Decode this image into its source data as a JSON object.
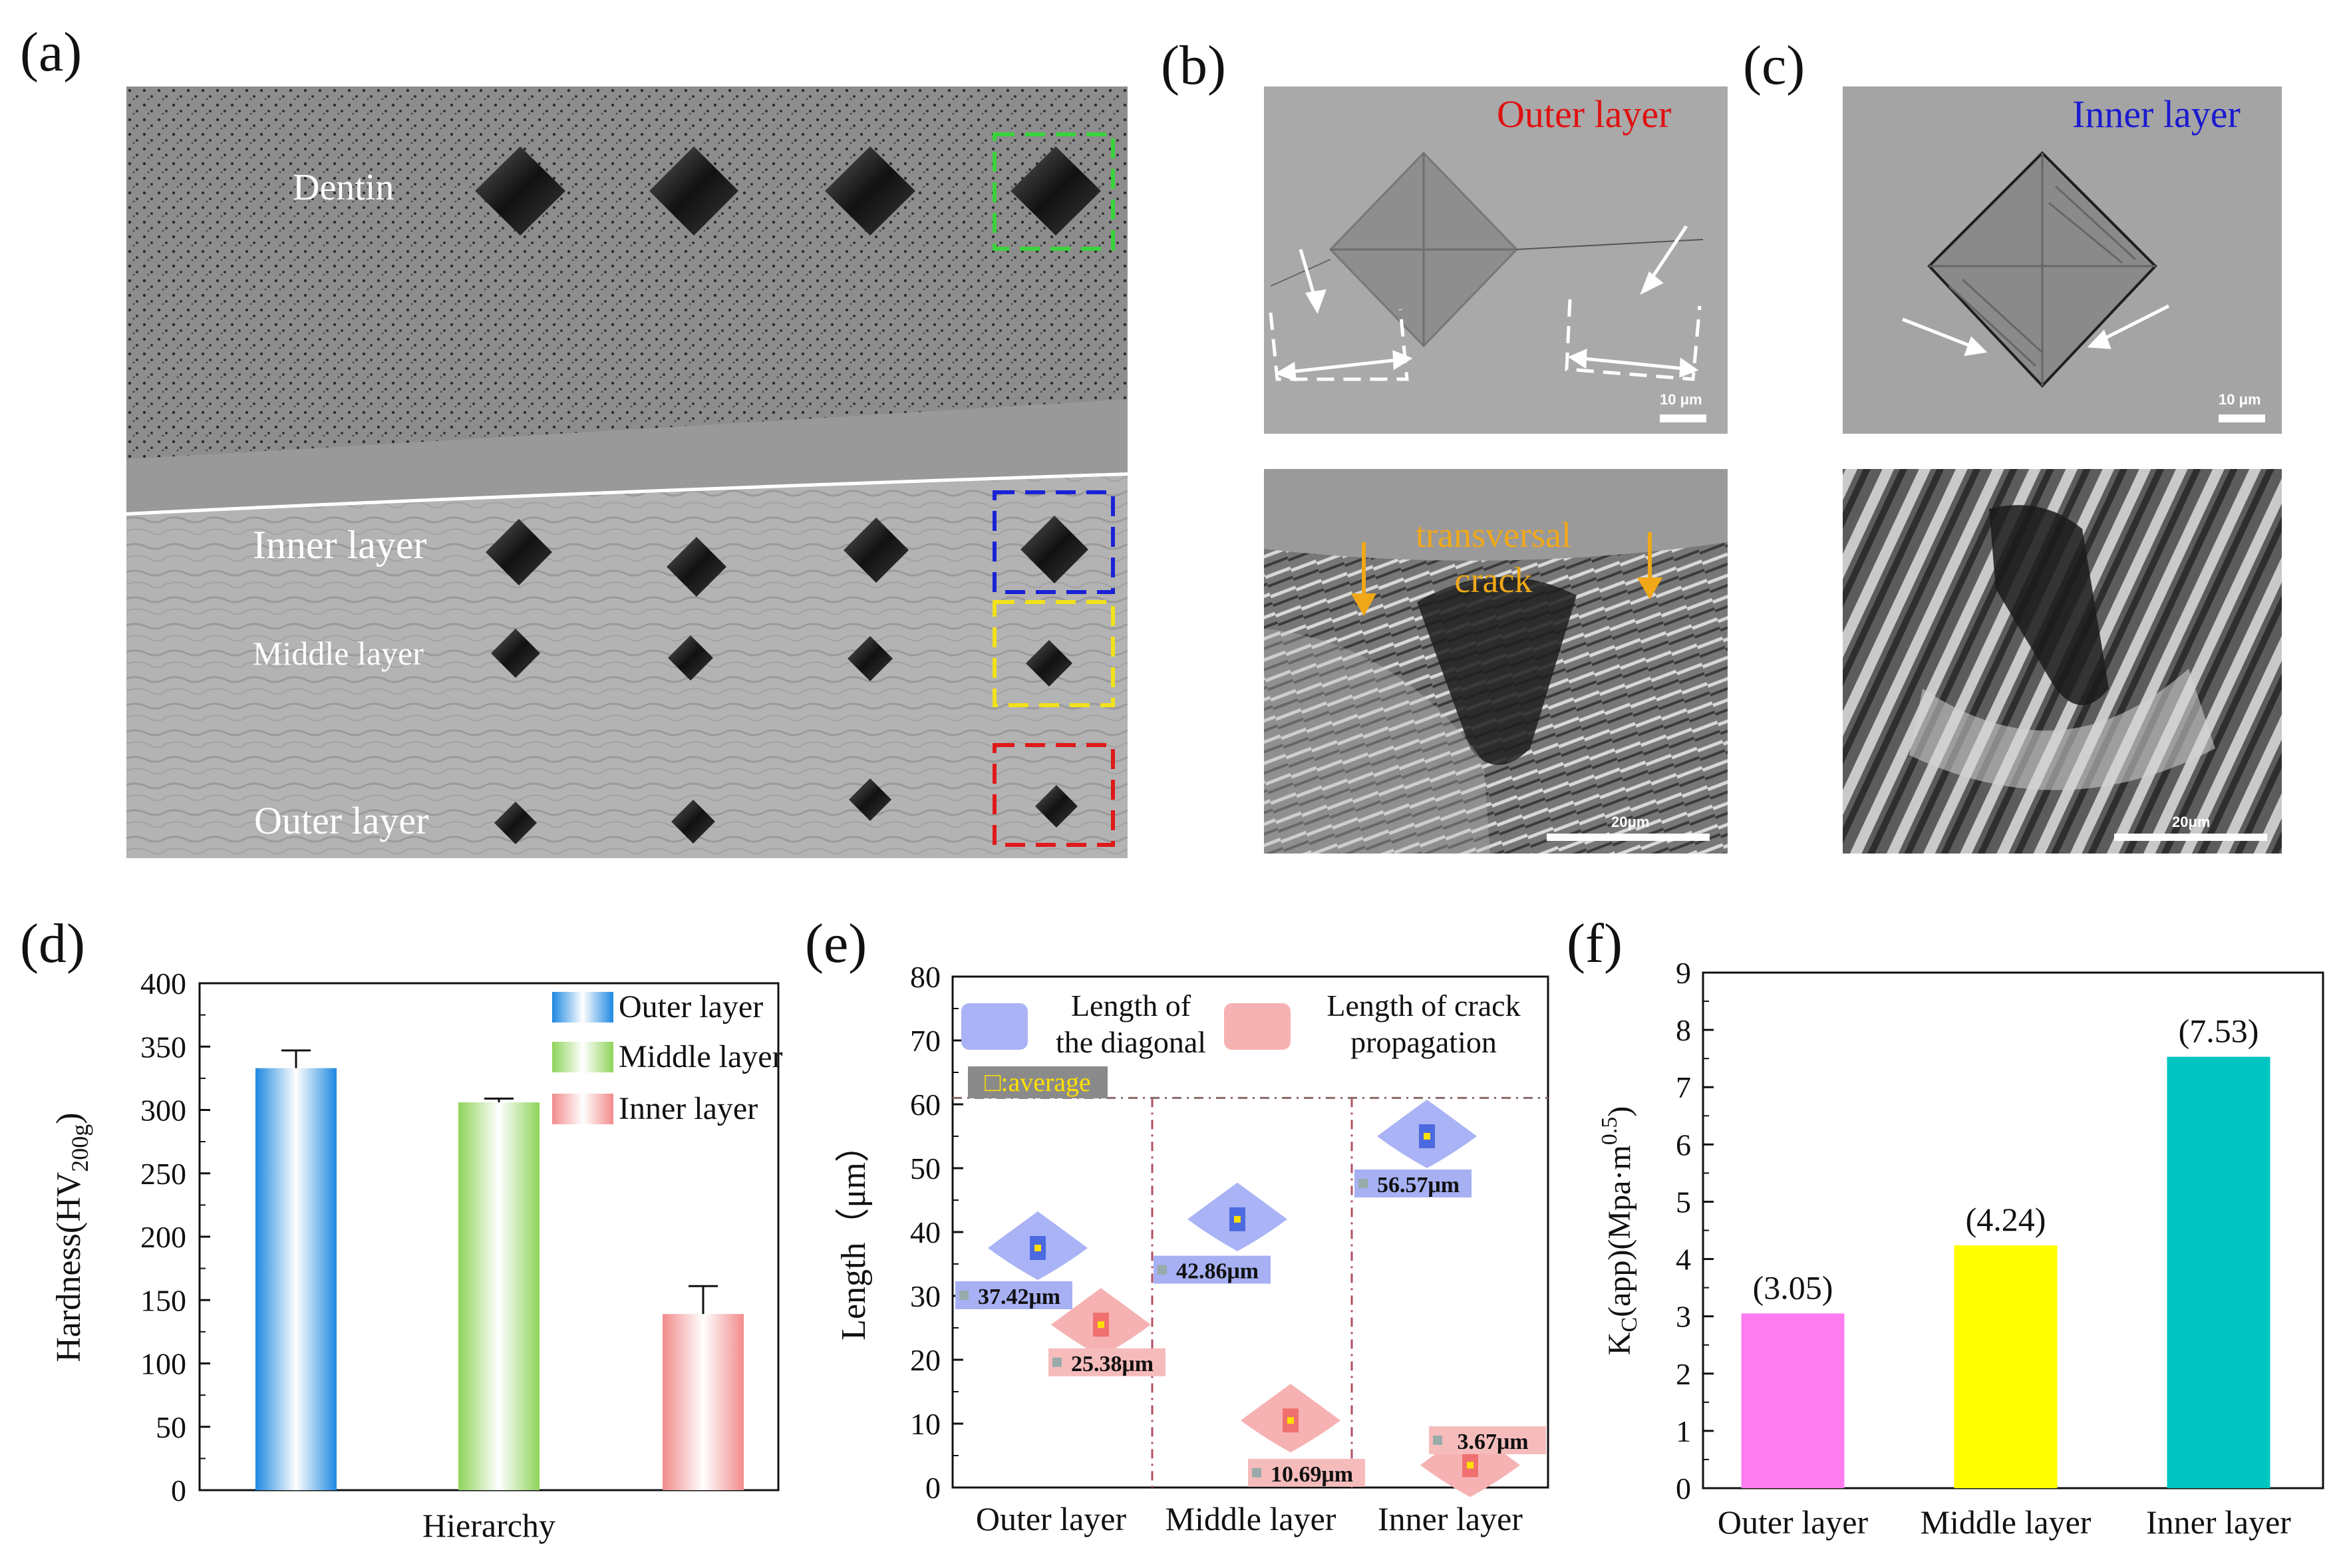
{
  "figure": {
    "panel_labels": [
      "(a)",
      "(b)",
      "(c)",
      "(d)",
      "(e)",
      "(f)"
    ]
  },
  "panel_a": {
    "labels": [
      "Dentin",
      "Inner layer",
      "Middle layer",
      "Outer layer"
    ],
    "box_colors": [
      "#39d33b",
      "#1a22d6",
      "#f2e21b",
      "#e01919"
    ]
  },
  "panel_b": {
    "title": "Outer layer",
    "title_color": "#e01010",
    "scale_top": "10 μm",
    "annotation_line1": "transversal",
    "annotation_line2": "crack",
    "annotation_color": "#f0a818",
    "scale_bottom": "20μm"
  },
  "panel_c": {
    "title": "Inner layer",
    "title_color": "#1a1ad0",
    "scale_top": "10 μm",
    "scale_bottom": "20μm"
  },
  "chart_data": [
    {
      "type": "bar",
      "panel": "d",
      "title": "",
      "xlabel": "Hierarchy",
      "ylabel_main": "Hardness(HV",
      "ylabel_sub": "200g",
      "ylabel_close": ")",
      "ylim": [
        0,
        400
      ],
      "yticks": [
        "0",
        "50",
        "100",
        "150",
        "200",
        "250",
        "300",
        "350",
        "400"
      ],
      "legend": [
        "Outer layer",
        "Middle layer",
        "Inner layer"
      ],
      "series": [
        {
          "name": "Outer layer",
          "value": 333,
          "error": 14,
          "color": "#3a9ae8"
        },
        {
          "name": "Middle layer",
          "value": 306,
          "error": 3,
          "color": "#9ad86a"
        },
        {
          "name": "Inner layer",
          "value": 139,
          "error": 22,
          "color": "#f49a9a"
        }
      ]
    },
    {
      "type": "violin",
      "panel": "e",
      "ylabel": "Length（μm）",
      "ylim": [
        0,
        80
      ],
      "yticks": [
        "0",
        "10",
        "20",
        "30",
        "40",
        "50",
        "60",
        "70",
        "80"
      ],
      "categories": [
        "Outer layer",
        "Middle layer",
        "Inner layer"
      ],
      "legend": [
        {
          "line1": "Length of",
          "line2": "the diagonal",
          "color": "#aab3f5"
        },
        {
          "line1": "Length of crack",
          "line2": "propagation",
          "color": "#f6b2b2"
        }
      ],
      "average_label": "□:average",
      "reference_line": 61,
      "series": [
        {
          "name": "Length of the diagonal",
          "values": [
            37.42,
            42.86,
            56.57
          ],
          "labels": [
            "37.42μm",
            "42.86μm",
            "56.57μm"
          ],
          "box_centers": [
            37.5,
            42,
            55
          ]
        },
        {
          "name": "Length of crack propagation",
          "values": [
            25.38,
            10.69,
            3.67
          ],
          "labels": [
            "25.38μm",
            "10.69μm",
            "3.67μm"
          ],
          "box_centers": [
            25.5,
            10.5,
            3.5
          ]
        }
      ]
    },
    {
      "type": "bar",
      "panel": "f",
      "ylabel_main": "K",
      "ylabel_sub": "C",
      "ylabel_rest": "(app)(Mpa·m",
      "ylabel_sup": "0.5",
      "ylabel_close": ")",
      "ylim": [
        0,
        9
      ],
      "yticks": [
        "0",
        "1",
        "2",
        "3",
        "4",
        "5",
        "6",
        "7",
        "8",
        "9"
      ],
      "categories": [
        "Outer layer",
        "Middle layer",
        "Inner layer"
      ],
      "values": [
        3.05,
        4.24,
        7.53
      ],
      "labels": [
        "(3.05)",
        "(4.24)",
        "(7.53)"
      ],
      "colors": [
        "#ff7cf0",
        "#ffff00",
        "#00c5c0"
      ]
    }
  ]
}
